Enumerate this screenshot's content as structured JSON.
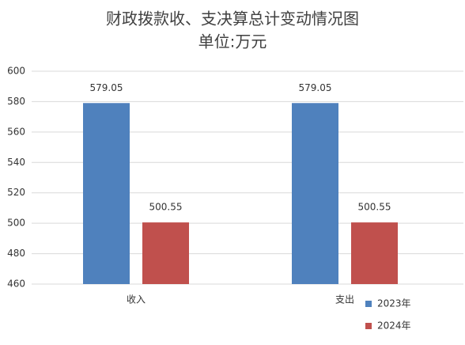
{
  "chart_data": {
    "type": "bar",
    "title": "财政拨款收、支决算总计变动情况图",
    "subtitle": "单位:万元",
    "categories": [
      "收入",
      "支出"
    ],
    "series": [
      {
        "name": "2023年",
        "color": "#4f81bd",
        "values": [
          579.05,
          579.05
        ]
      },
      {
        "name": "2024年",
        "color": "#c0504d",
        "values": [
          500.55,
          500.55
        ]
      }
    ],
    "ylim": [
      460,
      600
    ],
    "yticks": [
      460,
      480,
      500,
      520,
      540,
      560,
      580,
      600
    ],
    "grid": true,
    "legend": "bottom-right"
  }
}
